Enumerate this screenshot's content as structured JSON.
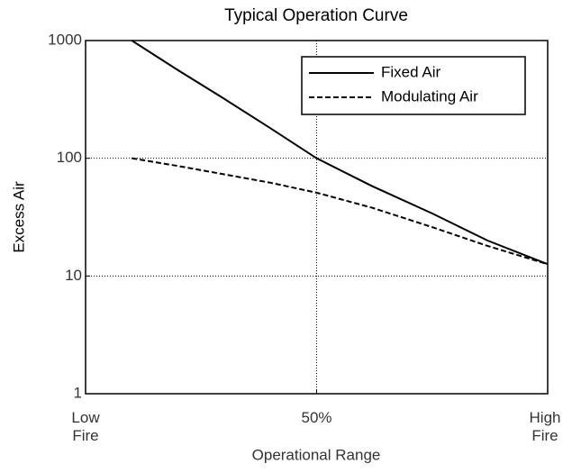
{
  "chart_data": {
    "type": "line",
    "title": "Typical Operation Curve",
    "xlabel": "Operational Range",
    "ylabel": "Excess Air",
    "x": [
      10,
      20,
      30,
      40,
      50,
      62,
      75,
      87,
      100
    ],
    "series": [
      {
        "name": "Fixed Air",
        "color": "#000000",
        "line_style": "solid",
        "values": [
          1000,
          560,
          320,
          180,
          100,
          58,
          34,
          20,
          12.6
        ]
      },
      {
        "name": "Modulating Air",
        "color": "#000000",
        "line_style": "dashed",
        "values": [
          100,
          86,
          73,
          62,
          51,
          38,
          26,
          18,
          12.6
        ]
      }
    ],
    "xlim": [
      0,
      100
    ],
    "xticks": [
      {
        "value": 0,
        "label": "Low Fire"
      },
      {
        "value": 50,
        "label": "50%"
      },
      {
        "value": 100,
        "label": "High Fire"
      }
    ],
    "ylim": [
      1,
      1000
    ],
    "yticks": [
      1,
      10,
      100,
      1000
    ],
    "yscale": "log",
    "grid": true,
    "legend": "upper right"
  }
}
